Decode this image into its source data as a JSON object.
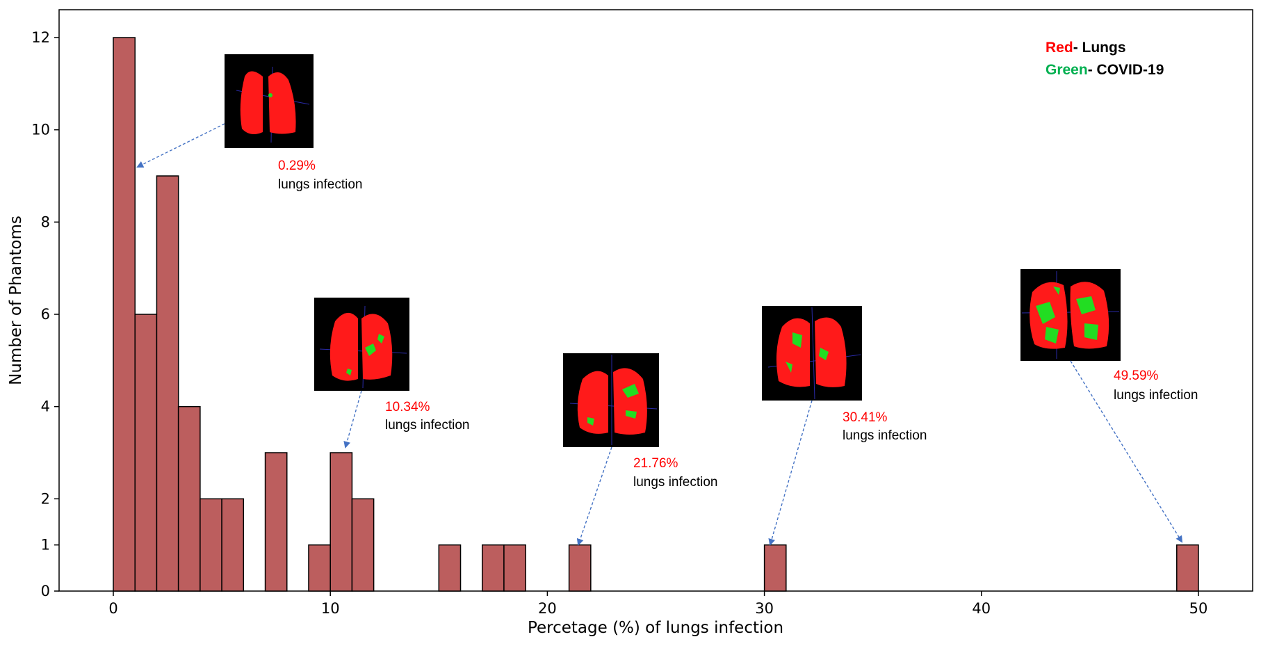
{
  "chart_data": {
    "type": "bar",
    "xlabel": "Percetage (%) of lungs infection",
    "ylabel": "Number of Phantoms",
    "xlim": [
      -2.5,
      52.5
    ],
    "ylim": [
      0,
      12.6
    ],
    "xticks": [
      "0",
      "10",
      "20",
      "30",
      "40",
      "50"
    ],
    "xtick_values": [
      0,
      10,
      20,
      30,
      40,
      50
    ],
    "yticks": [
      "0",
      "1",
      "2",
      "4",
      "6",
      "8",
      "10",
      "12"
    ],
    "ytick_values": [
      0,
      1,
      2,
      4,
      6,
      8,
      10,
      12
    ],
    "bin_width": 1.0,
    "bars": [
      {
        "x": 0.0,
        "value": 12
      },
      {
        "x": 1.0,
        "value": 6
      },
      {
        "x": 2.0,
        "value": 9
      },
      {
        "x": 3.0,
        "value": 4
      },
      {
        "x": 4.0,
        "value": 2
      },
      {
        "x": 5.0,
        "value": 2
      },
      {
        "x": 7.0,
        "value": 3
      },
      {
        "x": 9.0,
        "value": 1
      },
      {
        "x": 10.0,
        "value": 3
      },
      {
        "x": 11.0,
        "value": 2
      },
      {
        "x": 15.0,
        "value": 1
      },
      {
        "x": 17.0,
        "value": 1
      },
      {
        "x": 18.0,
        "value": 1
      },
      {
        "x": 21.0,
        "value": 1
      },
      {
        "x": 30.0,
        "value": 1
      },
      {
        "x": 49.0,
        "value": 1
      }
    ],
    "colors": {
      "bar_fill": "#bc5e5e",
      "bar_edge": "#000000",
      "arrow": "#4472c4",
      "red": "#ff0000",
      "green": "#00b050"
    },
    "legend": {
      "placement": "top-right",
      "entries": [
        {
          "color_word": "Red",
          "suffix": "- Lungs",
          "color": "#ff0000"
        },
        {
          "color_word": "Green",
          "suffix": "- COVID-19",
          "color": "#00b050"
        }
      ]
    },
    "annotations": [
      {
        "percent": "0.29%",
        "text": "lungs infection",
        "target": [
          1.1,
          9.2
        ]
      },
      {
        "percent": "10.34%",
        "text": "lungs infection",
        "target": [
          10.7,
          3.1
        ]
      },
      {
        "percent": "21.76%",
        "text": "lungs infection",
        "target": [
          21.5,
          1.0
        ]
      },
      {
        "percent": "30.41%",
        "text": "lungs infection",
        "target": [
          30.3,
          1.0
        ]
      },
      {
        "percent": "49.59%",
        "text": "lungs infection",
        "target": [
          49.3,
          1.0
        ]
      }
    ]
  }
}
